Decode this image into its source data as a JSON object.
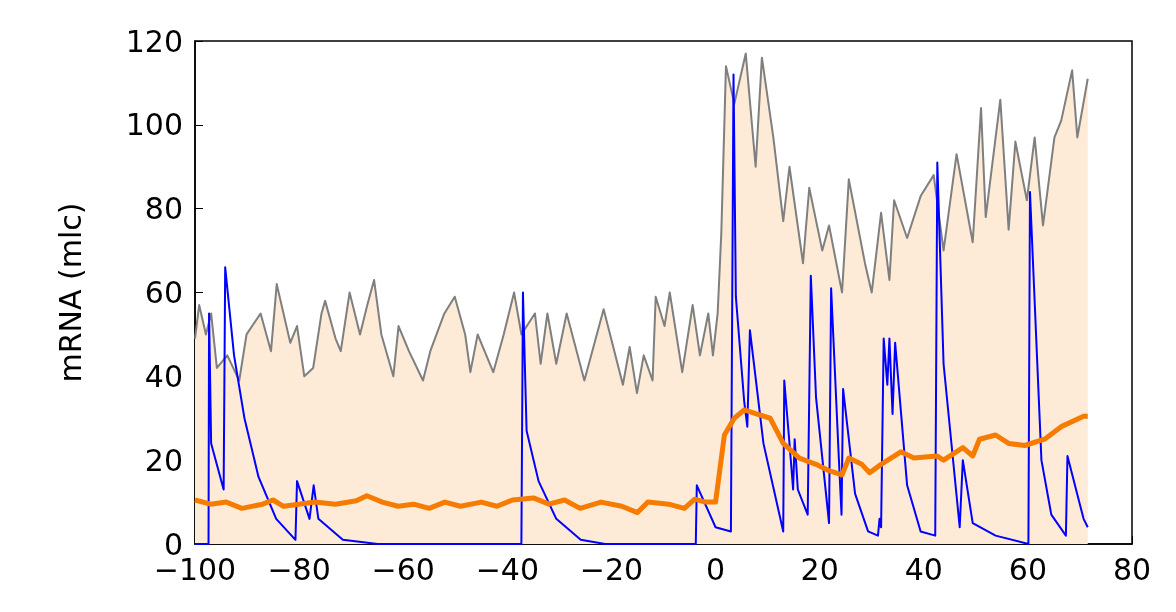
{
  "chart_data": {
    "type": "line",
    "ylabel": "mRNA (mlc)",
    "xlim": [
      -100,
      80
    ],
    "xticks": [
      -100,
      -80,
      -60,
      -40,
      -20,
      0,
      20,
      40,
      60,
      80
    ],
    "ylim": [
      0,
      120
    ],
    "yticks": [
      0,
      20,
      40,
      60,
      80,
      100,
      120
    ],
    "grid": false,
    "marker": "none",
    "line_style": "solid",
    "series": [
      {
        "type": "area",
        "color": "#7f7f7f",
        "x": [
          -100,
          -99.2,
          -97.9,
          -96.9,
          -95.8,
          -93.8,
          -91.5,
          -90.1,
          -87.4,
          -85.4,
          -84.3,
          -81.7,
          -80.4,
          -79.0,
          -77.3,
          -75.7,
          -75.0,
          -73.0,
          -72.0,
          -70.3,
          -68.3,
          -66.9,
          -65.6,
          -64.2,
          -61.9,
          -60.9,
          -58.9,
          -56.2,
          -54.8,
          -52.1,
          -50.1,
          -48.1,
          -47.1,
          -45.7,
          -42.7,
          -40.7,
          -38.7,
          -37.3,
          -34.7,
          -33.6,
          -32.3,
          -30.6,
          -28.6,
          -25.2,
          -21.5,
          -17.8,
          -16.5,
          -15.1,
          -13.8,
          -12.1,
          -11.5,
          -9.8,
          -8.8,
          -6.4,
          -4.4,
          -3.0,
          -1.4,
          -0.5,
          0.4,
          1.1,
          2.0,
          3.6,
          5.8,
          7.7,
          8.9,
          11.1,
          13.0,
          14.2,
          16.8,
          18.0,
          20.5,
          21.8,
          24.3,
          25.6,
          28.7,
          30.0,
          31.8,
          33.4,
          34.3,
          36.8,
          39.4,
          41.9,
          43.8,
          46.3,
          49.4,
          51.0,
          51.9,
          54.7,
          56.3,
          57.6,
          59.8,
          61.3,
          62.9,
          65.1,
          66.4,
          68.5,
          69.5,
          71.5
        ],
        "values": [
          49,
          57,
          50,
          55,
          42,
          45,
          39,
          50,
          55,
          46,
          62,
          48,
          52,
          40,
          42,
          55,
          58,
          49,
          46,
          60,
          50,
          57,
          63,
          50,
          40,
          52,
          46,
          39,
          46,
          55,
          59,
          50,
          41,
          50,
          41,
          50,
          60,
          50,
          55,
          43,
          55,
          43,
          55,
          39,
          56,
          38,
          47,
          36,
          45,
          39,
          59,
          52,
          60,
          41,
          57,
          45,
          55,
          45,
          55,
          74,
          114,
          105,
          117,
          90,
          116,
          97,
          77,
          90,
          67,
          85,
          70,
          76,
          60,
          87,
          67,
          60,
          79,
          63,
          82,
          73,
          83,
          88,
          70,
          93,
          72,
          104,
          78,
          106,
          75,
          96,
          82,
          97,
          76,
          97,
          101,
          113,
          97,
          111
        ]
      },
      {
        "color": "#0000ff",
        "x": [
          -100,
          -97.4,
          -97.3,
          -96.9,
          -94.5,
          -94.2,
          -92.5,
          -90.5,
          -87.8,
          -84.4,
          -80.7,
          -80.4,
          -78.0,
          -77.2,
          -76.3,
          -71.6,
          -64.9,
          -37.3,
          -37.0,
          -36.3,
          -34.0,
          -30.6,
          -25.9,
          -21.2,
          -3.8,
          -3.6,
          0,
          2.95,
          3.45,
          3.9,
          5.5,
          6.1,
          6.6,
          9.2,
          13.0,
          13.2,
          14.2,
          14.9,
          15.2,
          15.8,
          17.7,
          18.3,
          19.3,
          21.8,
          22.2,
          23.7,
          24.2,
          24.5,
          26.8,
          29.3,
          31.2,
          31.5,
          31.8,
          32.3,
          33.0,
          33.4,
          34.0,
          34.5,
          36.8,
          39.4,
          42.2,
          42.6,
          43.8,
          46.9,
          47.5,
          49.4,
          53.8,
          60.1,
          60.4,
          62.6,
          64.5,
          67.3,
          67.6,
          70.7,
          71.5
        ],
        "values": [
          0,
          0,
          55,
          24,
          13,
          66,
          45,
          30,
          16,
          6,
          1,
          15,
          6,
          14,
          6,
          1,
          0,
          0,
          60,
          27,
          15,
          6,
          1,
          0,
          0,
          14,
          4,
          3,
          112,
          59,
          34,
          28,
          51,
          24,
          3,
          39,
          24,
          13,
          25,
          13,
          7,
          64,
          35,
          5,
          61,
          20,
          7,
          37,
          12,
          3,
          2,
          6,
          4,
          49,
          38,
          49,
          31,
          48,
          14,
          3,
          2,
          91,
          43,
          4,
          20,
          5,
          2,
          0,
          84,
          20,
          7,
          2,
          21,
          6,
          4
        ]
      },
      {
        "color": "#f57c00",
        "x": [
          -100,
          -97,
          -94,
          -91,
          -87,
          -85,
          -83,
          -80,
          -77,
          -73,
          -69,
          -67,
          -64,
          -61,
          -58,
          -55,
          -52,
          -49,
          -45,
          -42,
          -39,
          -35,
          -32,
          -29,
          -26,
          -22,
          -18,
          -15,
          -13,
          -9,
          -6,
          -4,
          -2,
          0,
          1.7,
          3.6,
          5.5,
          8.0,
          10.5,
          13.0,
          16.1,
          19.3,
          21.8,
          24.3,
          25.6,
          28.1,
          29.6,
          31.8,
          35.6,
          38.1,
          42.5,
          43.8,
          47.5,
          49.4,
          50.7,
          53.8,
          56.3,
          59.4,
          63.2,
          66.4,
          70.7,
          71.5
        ],
        "values": [
          10.5,
          9.5,
          10,
          8.5,
          9.5,
          10.5,
          9,
          9.5,
          10,
          9.5,
          10.3,
          11.5,
          10,
          9,
          9.5,
          8.5,
          10,
          9,
          10,
          9,
          10.5,
          11,
          9.5,
          10.5,
          8.5,
          10,
          9,
          7.5,
          10,
          9.5,
          8.5,
          10.7,
          10,
          10,
          26,
          30,
          32,
          31,
          30,
          24,
          20.5,
          19,
          17.5,
          16.5,
          20.5,
          19,
          17,
          19,
          22,
          20.5,
          21,
          20,
          23,
          21,
          25,
          26,
          24,
          23.5,
          25,
          28,
          30.5,
          30.5
        ]
      }
    ]
  }
}
